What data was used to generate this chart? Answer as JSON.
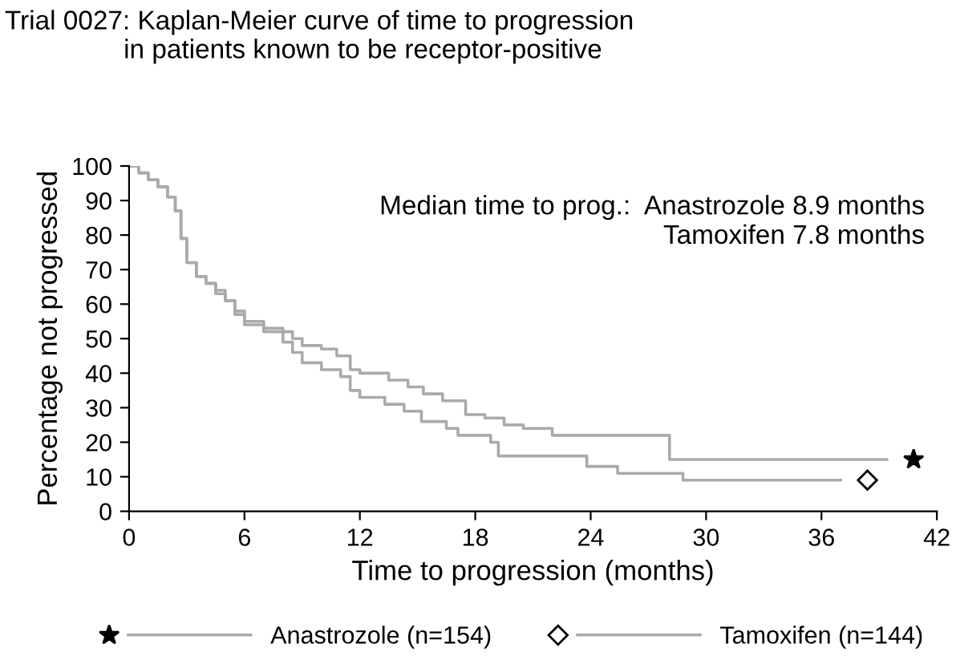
{
  "chart_data": {
    "type": "step",
    "title": "Trial 0027: Kaplan-Meier curve of time to progression\n                in patients known to be receptor-positive",
    "xlabel": "Time to progression (months)",
    "ylabel": "Percentage not progressed",
    "annotations": [
      "Median time to prog.:  Anastrozole 8.9 months",
      "Tamoxifen 7.8 months"
    ],
    "series": [
      {
        "name": "Anastrozole (n=154)",
        "color": "#aaaaaa",
        "x": [
          0,
          0.5,
          1,
          1.5,
          2,
          2.4,
          2.7,
          3,
          3.5,
          4,
          4.5,
          5,
          5.5,
          6,
          7,
          8,
          8.5,
          9,
          10,
          10.8,
          11.5,
          12,
          13.5,
          14.5,
          15.3,
          16.3,
          17.5,
          18.5,
          19.5,
          20.5,
          22,
          28.1,
          39.4
        ],
        "values": [
          100,
          98,
          96,
          94,
          91,
          87,
          79,
          72,
          68,
          66,
          63,
          61,
          58,
          55,
          53,
          52,
          50,
          48,
          47,
          45,
          41,
          40,
          38,
          36,
          34,
          32,
          28,
          27,
          25,
          24,
          22,
          15,
          15
        ]
      },
      {
        "name": "Tamoxifen (n=144)",
        "color": "#aaaaaa",
        "x": [
          0,
          0.5,
          1,
          1.5,
          2,
          2.4,
          2.7,
          3,
          3.5,
          4,
          4.5,
          5,
          5.5,
          6,
          7,
          8,
          8.5,
          9,
          10,
          11,
          11.5,
          12,
          13.3,
          14.3,
          15.2,
          16.5,
          17.1,
          18.8,
          19.2,
          23.8,
          25.4,
          28.8,
          37
        ],
        "values": [
          100,
          98,
          96,
          94,
          91,
          87,
          79,
          72,
          68,
          66,
          64,
          61,
          57,
          54,
          52,
          49,
          46,
          43,
          41,
          39,
          35,
          33,
          31,
          29,
          26,
          24,
          22,
          20,
          16,
          13,
          11,
          9,
          9
        ]
      }
    ],
    "xlim": [
      0,
      42
    ],
    "xticks": [
      0,
      6,
      12,
      18,
      24,
      30,
      36,
      42
    ],
    "ylim": [
      0,
      100
    ],
    "yticks": [
      0,
      10,
      20,
      30,
      40,
      50,
      60,
      70,
      80,
      90,
      100
    ],
    "grid": false,
    "legend": "bottom",
    "line_style": "solid"
  }
}
